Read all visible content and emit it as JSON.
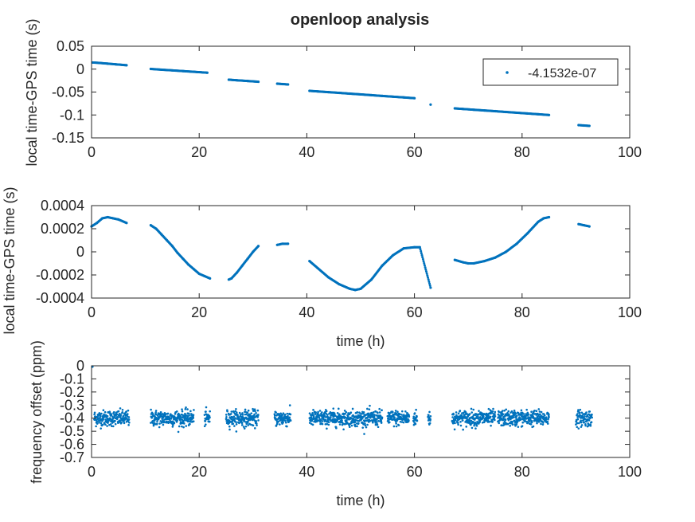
{
  "figure": {
    "title": "openloop analysis"
  },
  "chart_data": [
    {
      "type": "scatter",
      "title": "openloop analysis",
      "xlabel": "",
      "ylabel": "local time-GPS time (s)",
      "xlim": [
        0,
        100
      ],
      "ylim": [
        -0.15,
        0.05
      ],
      "xticks": [
        0,
        20,
        40,
        60,
        80,
        100
      ],
      "xtick_labels": [
        "0",
        "20",
        "40",
        "60",
        "80",
        "100"
      ],
      "yticks": [
        0.05,
        0,
        -0.05,
        -0.1,
        -0.15
      ],
      "ytick_labels": [
        "0.05",
        "0",
        "-0.05",
        "-0.1",
        "-0.15"
      ],
      "grid": false,
      "legend": {
        "position": "top-right",
        "entries": [
          "-4.1532e-07"
        ]
      },
      "series": [
        {
          "name": "-4.1532e-07",
          "color": "#0072BD",
          "x": [
            0.2,
            1.5,
            3,
            4.5,
            6.5,
            11,
            13,
            15,
            17,
            19,
            21.5,
            25.5,
            27,
            29,
            31,
            34.5,
            35.5,
            36.5,
            40.5,
            42,
            44,
            46,
            48,
            50,
            52,
            54,
            56,
            58,
            60,
            63,
            67.5,
            69,
            71,
            73,
            75,
            77,
            79,
            81,
            83,
            85,
            90.5,
            91.5,
            92.5
          ],
          "y": [
            0.0145,
            0.0135,
            0.012,
            0.0105,
            0.0085,
            0.0004,
            -0.0012,
            -0.0027,
            -0.0043,
            -0.0058,
            -0.0078,
            -0.023,
            -0.0243,
            -0.0259,
            -0.0275,
            -0.0318,
            -0.0326,
            -0.0334,
            -0.0474,
            -0.0486,
            -0.0502,
            -0.0518,
            -0.0535,
            -0.0551,
            -0.0568,
            -0.0585,
            -0.0601,
            -0.0617,
            -0.0634,
            -0.0774,
            -0.0857,
            -0.0869,
            -0.0886,
            -0.0902,
            -0.0918,
            -0.0935,
            -0.0951,
            -0.0968,
            -0.0984,
            -0.1001,
            -0.1222,
            -0.123,
            -0.1238
          ]
        }
      ]
    },
    {
      "type": "scatter",
      "title": "",
      "xlabel": "time (h)",
      "ylabel": "local time-GPS time (s)",
      "xlim": [
        0,
        100
      ],
      "ylim": [
        -0.0004,
        0.0004
      ],
      "xticks": [
        0,
        20,
        40,
        60,
        80,
        100
      ],
      "xtick_labels": [
        "0",
        "20",
        "40",
        "60",
        "80",
        "100"
      ],
      "yticks": [
        0.0004,
        0.0002,
        0,
        -0.0002,
        -0.0004
      ],
      "ytick_labels": [
        "0.0004",
        "0.0002",
        "0",
        "-0.0002",
        "-0.0004"
      ],
      "grid": false,
      "series": [
        {
          "color": "#0072BD",
          "x": [
            0,
            1,
            2,
            3,
            4,
            5,
            6.5,
            11,
            12,
            13,
            14,
            15,
            16,
            17,
            18,
            19,
            20,
            21,
            22,
            25.5,
            26,
            27,
            28,
            29,
            30,
            31,
            34.5,
            35.5,
            36.5,
            40.5,
            42,
            44,
            46,
            48,
            49,
            50,
            52,
            54,
            56,
            58,
            60,
            61,
            63,
            67.5,
            69,
            70,
            71,
            73,
            75,
            77,
            79,
            81,
            83,
            84,
            85,
            90.5,
            91.5,
            92.5
          ],
          "y": [
            0.00022,
            0.00025,
            0.00029,
            0.0003,
            0.00029,
            0.00028,
            0.00025,
            0.00023,
            0.0002,
            0.00015,
            0.0001,
            5e-05,
            -1e-05,
            -6e-05,
            -0.00011,
            -0.00015,
            -0.00019,
            -0.00021,
            -0.00023,
            -0.00024,
            -0.00023,
            -0.00018,
            -0.00012,
            -6e-05,
            0.0,
            5e-05,
            6e-05,
            7e-05,
            7e-05,
            -8e-05,
            -0.00014,
            -0.00022,
            -0.00028,
            -0.00032,
            -0.00033,
            -0.00032,
            -0.00024,
            -0.00012,
            -3e-05,
            3e-05,
            4e-05,
            4e-05,
            -0.00031,
            -7e-05,
            -9e-05,
            -0.0001,
            -0.0001,
            -8e-05,
            -5e-05,
            0.0,
            7e-05,
            0.00016,
            0.00026,
            0.00029,
            0.0003,
            0.00024,
            0.00023,
            0.00022
          ]
        }
      ]
    },
    {
      "type": "scatter",
      "title": "",
      "xlabel": "time (h)",
      "ylabel": "frequency offset (ppm)",
      "xlim": [
        0,
        100
      ],
      "ylim": [
        -0.7,
        0
      ],
      "xticks": [
        0,
        20,
        40,
        60,
        80,
        100
      ],
      "xtick_labels": [
        "0",
        "20",
        "40",
        "60",
        "80",
        "100"
      ],
      "yticks": [
        0,
        -0.1,
        -0.2,
        -0.3,
        -0.4,
        -0.5,
        -0.6,
        -0.7
      ],
      "ytick_labels": [
        "0",
        "-0.1",
        "-0.2",
        "-0.3",
        "-0.4",
        "-0.5",
        "-0.6",
        "-0.7"
      ],
      "grid": false,
      "series": [
        {
          "color": "#0072BD",
          "segments": [
            [
              0.5,
              7
            ],
            [
              11,
              19
            ],
            [
              21,
              22
            ],
            [
              25,
              31
            ],
            [
              34,
              37
            ],
            [
              40.5,
              54
            ],
            [
              55,
              59
            ],
            [
              59.8,
              60.5
            ],
            [
              62.5,
              63
            ],
            [
              67,
              75
            ],
            [
              75.5,
              85
            ],
            [
              90,
              93
            ]
          ],
          "mean": -0.4,
          "spread": 0.03,
          "start_point": {
            "x": 0,
            "y": 0
          }
        }
      ]
    }
  ]
}
